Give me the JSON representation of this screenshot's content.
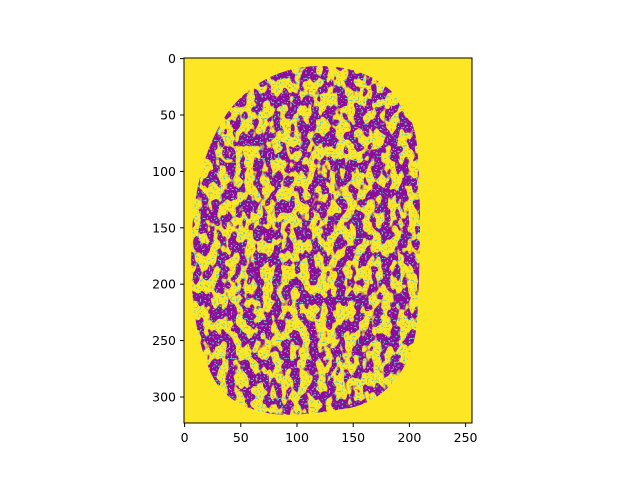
{
  "image": {
    "description_colors": {
      "background": "#fde725",
      "ridge": "#440154",
      "speckle": "#21918c"
    },
    "width_units": 256,
    "height_units": 324
  },
  "axes": {
    "x_ticks": [
      "0",
      "50",
      "100",
      "150",
      "200",
      "250"
    ],
    "y_ticks": [
      "0",
      "50",
      "100",
      "150",
      "200",
      "250",
      "300"
    ]
  }
}
